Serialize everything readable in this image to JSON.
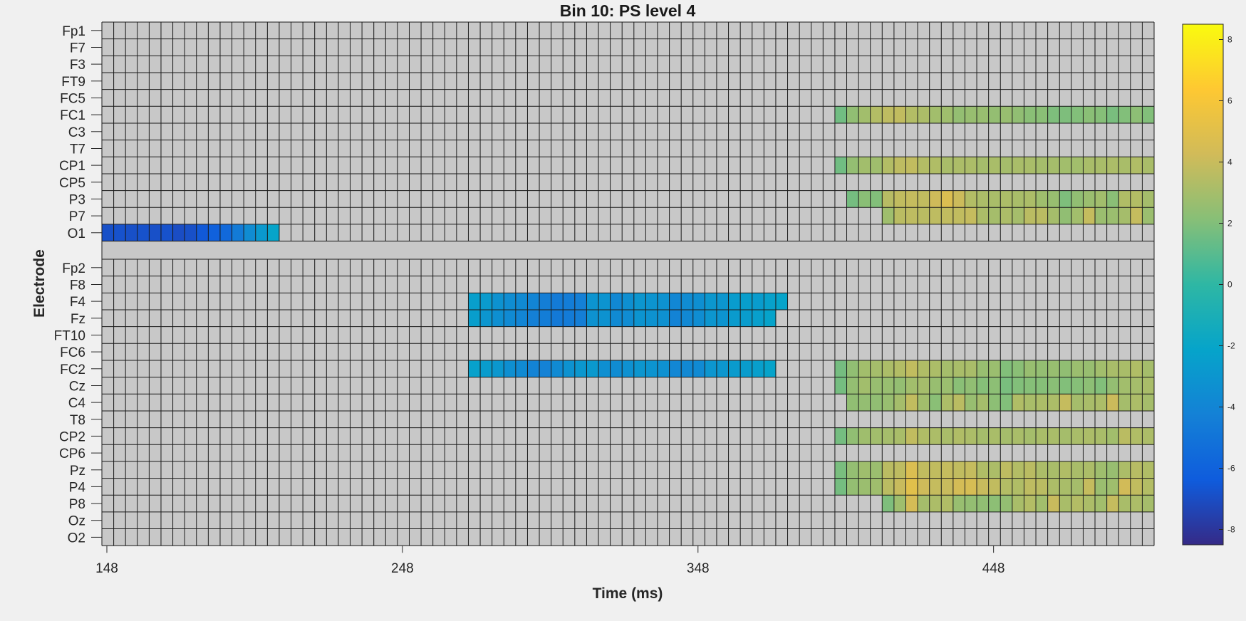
{
  "chart_data": {
    "type": "heatmap",
    "title": "Bin 10: PS level 4",
    "xlabel": "Time (ms)",
    "ylabel": "Electrode",
    "x_ticks": [
      148,
      248,
      348,
      448
    ],
    "x_start_ms": 148,
    "x_step_ms": 4,
    "n_time_bins": 89,
    "groups": [
      [
        "Fp1",
        "F7",
        "F3",
        "FT9",
        "FC5",
        "FC1",
        "C3",
        "T7",
        "CP1",
        "CP5",
        "P3",
        "P7",
        "O1"
      ],
      [
        "Fp2",
        "F8",
        "F4",
        "Fz",
        "FT10",
        "FC6",
        "FC2",
        "Cz",
        "C4",
        "T8",
        "CP2",
        "CP6",
        "Pz",
        "P4",
        "P8",
        "Oz",
        "O2"
      ]
    ],
    "colorbar": {
      "range": [
        -8.5,
        8.5
      ],
      "ticks": [
        -8,
        -6,
        -4,
        -2,
        0,
        2,
        4,
        6,
        8
      ],
      "colormap": "parula",
      "stops": [
        "#352a87",
        "#0f5cdd",
        "#1481d6",
        "#06a4ca",
        "#2eb7a4",
        "#87bf77",
        "#d1bb59",
        "#fec832",
        "#f9fb0e"
      ]
    },
    "nonsignificant_color": "#c8c8c8",
    "grid_line_color": "#1a1a1a",
    "significant_runs": {
      "O1": [
        {
          "start": 0,
          "values": [
            -6.9,
            -6.8,
            -6.9,
            -6.8,
            -6.9,
            -6.8,
            -7.0,
            -6.9,
            -6.5,
            -6.1,
            -5.6,
            -4.6,
            -3.6,
            -2.8,
            -2.1
          ]
        }
      ],
      "FC1": [
        {
          "start": 62,
          "values": [
            1.6,
            2.4,
            2.9,
            3.4,
            3.7,
            3.8,
            3.4,
            3.2,
            2.9,
            2.8,
            2.5,
            2.6,
            2.6,
            2.5,
            2.6,
            2.4,
            2.2,
            2.2,
            1.9,
            1.9,
            2.0,
            2.2,
            2.1,
            1.8,
            2.0,
            2.3,
            2.0
          ]
        }
      ],
      "CP1": [
        {
          "start": 62,
          "values": [
            1.6,
            2.5,
            2.9,
            2.8,
            3.4,
            3.7,
            3.8,
            3.4,
            3.3,
            3.1,
            3.2,
            3.2,
            3.0,
            3.1,
            3.0,
            3.1,
            3.1,
            3.0,
            3.0,
            2.9,
            2.9,
            3.1,
            3.1,
            3.2,
            3.1,
            3.3,
            3.1
          ]
        }
      ],
      "P3": [
        {
          "start": 63,
          "values": [
            1.7,
            2.2,
            2.0,
            3.5,
            3.8,
            3.9,
            3.8,
            4.2,
            4.7,
            4.1,
            3.4,
            3.2,
            3.1,
            3.2,
            3.1,
            3.2,
            2.8,
            2.6,
            1.9,
            2.4,
            2.7,
            2.9,
            2.2,
            3.3,
            3.4,
            3.0
          ]
        }
      ],
      "P7": [
        {
          "start": 66,
          "values": [
            2.8,
            3.6,
            3.7,
            3.6,
            3.7,
            3.8,
            3.8,
            3.9,
            3.2,
            3.0,
            3.2,
            3.0,
            3.6,
            3.6,
            3.0,
            2.4,
            2.9,
            3.9,
            2.7,
            2.7,
            3.0,
            3.9,
            2.7
          ]
        }
      ],
      "F4": [
        {
          "start": 31,
          "values": [
            -2.4,
            -2.7,
            -3.2,
            -3.5,
            -3.7,
            -4.0,
            -4.4,
            -4.6,
            -4.5,
            -4.3,
            -3.1,
            -3.1,
            -3.8,
            -3.4,
            -3.0,
            -3.1,
            -3.2,
            -3.9,
            -3.6,
            -3.4,
            -2.9,
            -3.0,
            -2.6,
            -2.5,
            -2.6,
            -2.3,
            -2.1
          ]
        }
      ],
      "Fz": [
        {
          "start": 31,
          "values": [
            -2.5,
            -3.0,
            -3.4,
            -3.7,
            -4.0,
            -4.3,
            -4.5,
            -4.7,
            -4.6,
            -4.4,
            -3.2,
            -3.2,
            -3.7,
            -3.6,
            -3.1,
            -3.2,
            -3.3,
            -4.1,
            -3.8,
            -3.5,
            -3.0,
            -3.1,
            -2.7,
            -2.6,
            -2.4,
            -2.2
          ]
        }
      ],
      "FC2": [
        {
          "start": 31,
          "values": [
            -2.3,
            -2.6,
            -2.9,
            -3.4,
            -3.7,
            -4.1,
            -4.2,
            -3.7,
            -3.2,
            -2.9,
            -2.8,
            -3.4,
            -3.6,
            -3.3,
            -3.0,
            -3.1,
            -3.3,
            -3.9,
            -3.8,
            -3.7,
            -3.0,
            -3.0,
            -2.7,
            -2.6,
            -2.4,
            -2.2
          ]
        },
        {
          "start": 62,
          "values": [
            1.7,
            2.4,
            2.9,
            3.0,
            3.2,
            3.4,
            3.8,
            3.3,
            3.2,
            3.0,
            3.1,
            3.1,
            2.6,
            2.7,
            2.0,
            2.2,
            2.6,
            2.5,
            2.6,
            2.4,
            2.7,
            2.6,
            2.9,
            3.1,
            3.1,
            3.3,
            3.0
          ]
        }
      ],
      "Cz": [
        {
          "start": 62,
          "values": [
            1.7,
            2.5,
            2.9,
            2.6,
            2.6,
            2.5,
            2.9,
            3.0,
            2.6,
            2.7,
            2.2,
            2.4,
            2.1,
            2.3,
            1.8,
            2.0,
            2.1,
            2.1,
            2.2,
            2.0,
            2.1,
            2.3,
            2.0,
            2.5,
            2.9,
            3.0,
            3.1
          ]
        }
      ],
      "C4": [
        {
          "start": 63,
          "values": [
            2.4,
            2.5,
            2.4,
            2.6,
            3.0,
            3.8,
            2.9,
            2.2,
            3.2,
            3.6,
            2.6,
            3.0,
            2.3,
            2.0,
            3.3,
            3.1,
            3.2,
            3.2,
            3.9,
            3.0,
            3.1,
            3.2,
            4.1,
            3.0,
            3.2,
            3.0
          ]
        }
      ],
      "CP2": [
        {
          "start": 62,
          "values": [
            1.7,
            2.4,
            2.8,
            2.9,
            3.0,
            3.1,
            3.8,
            3.3,
            3.2,
            3.1,
            3.3,
            3.2,
            3.0,
            3.1,
            3.0,
            3.1,
            3.0,
            3.1,
            3.1,
            3.0,
            3.1,
            3.2,
            3.1,
            2.9,
            3.6,
            3.3,
            3.2
          ]
        }
      ],
      "Pz": [
        {
          "start": 62,
          "values": [
            1.8,
            2.5,
            2.8,
            2.7,
            3.6,
            3.7,
            4.7,
            3.8,
            3.8,
            3.9,
            3.8,
            3.9,
            3.3,
            3.2,
            3.7,
            3.4,
            3.6,
            3.2,
            3.1,
            3.3,
            3.1,
            3.2,
            2.8,
            2.6,
            3.2,
            3.5,
            3.3
          ]
        }
      ],
      "P4": [
        {
          "start": 62,
          "values": [
            1.7,
            2.5,
            2.7,
            2.8,
            3.6,
            4.0,
            5.0,
            4.2,
            3.9,
            4.0,
            4.4,
            4.5,
            4.0,
            3.8,
            3.4,
            3.3,
            3.7,
            3.6,
            3.2,
            3.1,
            3.0,
            3.9,
            2.7,
            2.8,
            4.3,
            3.8,
            3.4
          ]
        }
      ],
      "P8": [
        {
          "start": 66,
          "values": [
            1.9,
            2.8,
            4.4,
            3.0,
            3.2,
            3.3,
            2.6,
            2.5,
            2.4,
            2.3,
            2.5,
            3.1,
            3.4,
            2.9,
            4.0,
            3.1,
            3.4,
            3.2,
            2.9,
            3.9,
            3.1,
            3.2,
            3.0
          ]
        }
      ]
    }
  }
}
